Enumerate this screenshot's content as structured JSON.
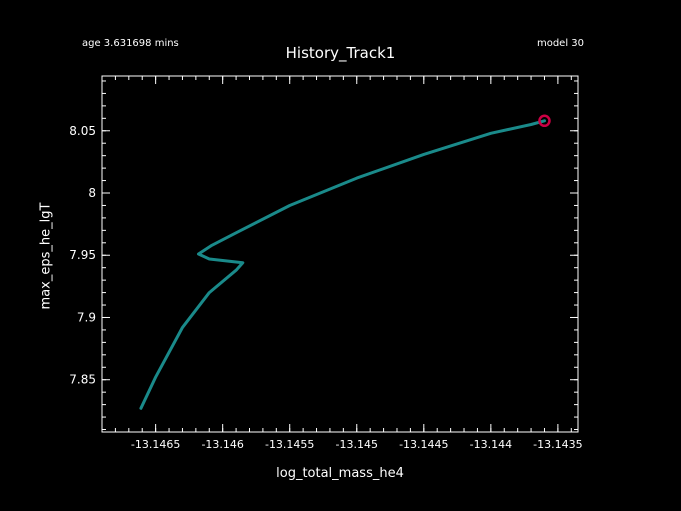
{
  "header": {
    "age_text": "age 3.631698 mins",
    "model_text": "model 30"
  },
  "chart_data": {
    "type": "line",
    "title": "History_Track1",
    "xlabel": "log_total_mass_he4",
    "ylabel": "max_eps_he_lgT",
    "xlim": [
      -13.1469,
      -13.14335
    ],
    "ylim": [
      7.808,
      8.094
    ],
    "x_ticks": [
      -13.1465,
      -13.146,
      -13.1455,
      -13.145,
      -13.1445,
      -13.144,
      -13.1435
    ],
    "x_tick_labels": [
      "-13.1465",
      "-13.146",
      "-13.1455",
      "-13.145",
      "-13.1445",
      "-13.144",
      "-13.1435"
    ],
    "y_ticks": [
      7.85,
      7.9,
      7.95,
      8.0,
      8.05
    ],
    "y_tick_labels": [
      "7.85",
      "7.9",
      "7.95",
      "8",
      "8.05"
    ],
    "series": [
      {
        "color": "#1a8a8a",
        "x": [
          -13.14661,
          -13.1465,
          -13.1463,
          -13.1461,
          -13.1459,
          -13.14585,
          -13.1461,
          -13.14618,
          -13.14608,
          -13.1459,
          -13.1455,
          -13.145,
          -13.1445,
          -13.144,
          -13.1437,
          -13.1436
        ],
        "y": [
          7.827,
          7.852,
          7.892,
          7.92,
          7.938,
          7.944,
          7.947,
          7.951,
          7.958,
          7.968,
          7.99,
          8.012,
          8.031,
          8.048,
          8.055,
          8.058
        ]
      }
    ],
    "marker": {
      "x": -13.1436,
      "y": 8.058,
      "color": "#cc0044"
    },
    "grid": false
  }
}
